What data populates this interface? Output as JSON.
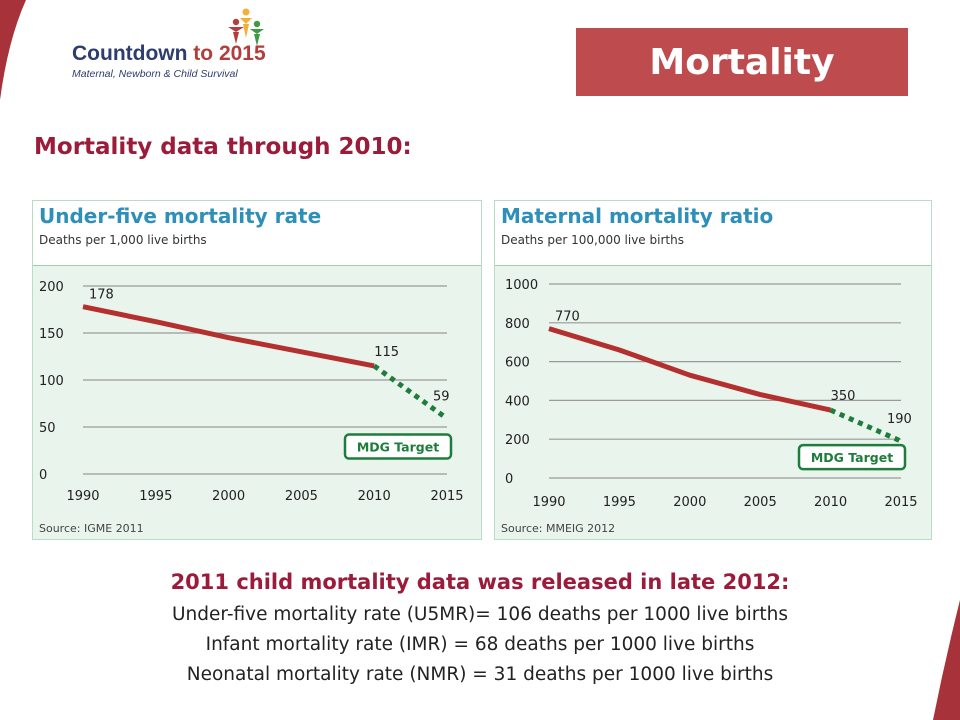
{
  "logo": {
    "name_part1": "Countdown ",
    "name_part2": "to 2015",
    "subtitle": "Maternal, Newborn & Child Survival"
  },
  "header": {
    "title": "Mortality"
  },
  "section_heading": "Mortality data through 2010:",
  "colors": {
    "accent": "#be4b4d",
    "heading": "#9b1b3b",
    "chart_line": "#b4302f",
    "target_line": "#1e7d3c",
    "panel_title": "#2e8fb8"
  },
  "chart_data": [
    {
      "type": "line",
      "title": "Under-five mortality rate",
      "subtitle": "Deaths per 1,000 live births",
      "source": "Source: IGME 2011",
      "x_ticks": [
        "1990",
        "1995",
        "2000",
        "2005",
        "2010",
        "2015"
      ],
      "y_ticks": [
        "0",
        "50",
        "100",
        "150",
        "200"
      ],
      "ylim": [
        0,
        200
      ],
      "xlim": [
        1990,
        2015
      ],
      "grid": true,
      "series": [
        {
          "points": [
            [
              1990,
              178
            ],
            [
              1995,
              162
            ],
            [
              2000,
              145
            ],
            [
              2005,
              130
            ],
            [
              2010,
              115
            ]
          ]
        },
        {
          "name": "MDG Target",
          "style": "dotted",
          "points": [
            [
              2010,
              115
            ],
            [
              2015,
              59
            ]
          ]
        }
      ],
      "data_labels": [
        {
          "x": 1990,
          "y": 178,
          "text": "178"
        },
        {
          "x": 2010,
          "y": 115,
          "text": "115"
        },
        {
          "x": 2015,
          "y": 59,
          "text": "59"
        }
      ],
      "target_label": "MDG Target"
    },
    {
      "type": "line",
      "title": "Maternal mortality ratio",
      "subtitle": "Deaths per 100,000 live births",
      "source": "Source: MMEIG 2012",
      "x_ticks": [
        "1990",
        "1995",
        "2000",
        "2005",
        "2010",
        "2015"
      ],
      "y_ticks": [
        "0",
        "200",
        "400",
        "600",
        "800",
        "1000"
      ],
      "ylim": [
        0,
        1000
      ],
      "xlim": [
        1990,
        2015
      ],
      "grid": true,
      "series": [
        {
          "points": [
            [
              1990,
              770
            ],
            [
              1995,
              660
            ],
            [
              2000,
              530
            ],
            [
              2005,
              430
            ],
            [
              2010,
              350
            ]
          ]
        },
        {
          "name": "MDG Target",
          "style": "dotted",
          "points": [
            [
              2010,
              350
            ],
            [
              2015,
              190
            ]
          ]
        }
      ],
      "data_labels": [
        {
          "x": 1990,
          "y": 770,
          "text": "770"
        },
        {
          "x": 2010,
          "y": 350,
          "text": "350"
        },
        {
          "x": 2015,
          "y": 190,
          "text": "190"
        }
      ],
      "target_label": "MDG Target"
    }
  ],
  "bottom": {
    "heading": "2011 child mortality data was released in late 2012:",
    "lines": [
      "Under-five mortality rate (U5MR)= 106 deaths per 1000 live births",
      "Infant mortality rate (IMR) = 68 deaths per 1000 live births",
      "Neonatal mortality rate (NMR) = 31 deaths per 1000 live births"
    ]
  }
}
